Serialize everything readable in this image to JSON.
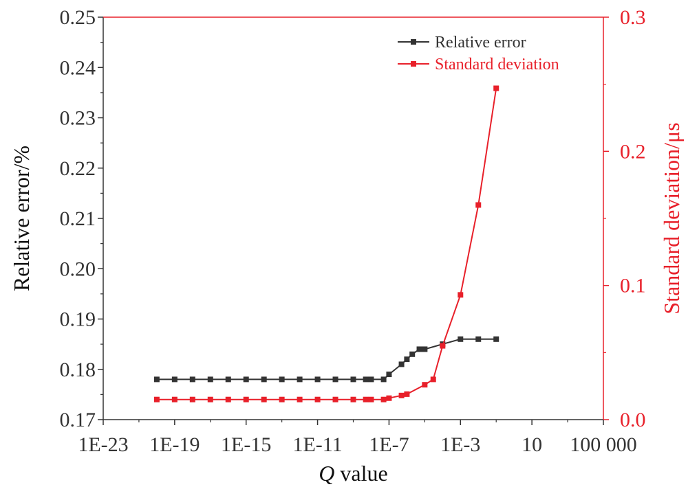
{
  "chart_data": {
    "type": "line",
    "xlabel_italic": "Q",
    "xlabel_rest": " value",
    "ylabel_left": "Relative error/%",
    "ylabel_right": "Standard deviation/μs",
    "x_scale": "log",
    "xlim": [
      1e-23,
      100000.0
    ],
    "x_tick_values": [
      1e-23,
      1e-19,
      1e-15,
      1e-11,
      1e-07,
      0.001,
      10,
      100000.0
    ],
    "x_tick_labels": [
      "1E-23",
      "1E-19",
      "1E-15",
      "1E-11",
      "1E-7",
      "1E-3",
      "10",
      "100 000"
    ],
    "ylim_left": [
      0.17,
      0.25
    ],
    "y_left_ticks": [
      "0.17",
      "0.18",
      "0.19",
      "0.20",
      "0.21",
      "0.22",
      "0.23",
      "0.24",
      "0.25"
    ],
    "ylim_right": [
      0.0,
      0.3
    ],
    "y_right_ticks": [
      "0.0",
      "0.1",
      "0.2",
      "0.3"
    ],
    "grid": false,
    "legend_position": "top-right",
    "series": [
      {
        "name": "Relative error",
        "axis": "left",
        "color": "#333333",
        "marker": "square",
        "x": [
          1e-20,
          1e-19,
          1e-18,
          1e-17,
          1e-16,
          1e-15,
          1e-14,
          1e-13,
          1e-12,
          1e-11,
          1e-10,
          1e-09,
          5e-09,
          1e-08,
          5e-08,
          1e-07,
          5e-07,
          1e-06,
          2e-06,
          5e-06,
          1e-05,
          0.0001,
          0.001,
          0.01,
          0.1
        ],
        "values": [
          0.178,
          0.178,
          0.178,
          0.178,
          0.178,
          0.178,
          0.178,
          0.178,
          0.178,
          0.178,
          0.178,
          0.178,
          0.178,
          0.178,
          0.178,
          0.179,
          0.181,
          0.182,
          0.183,
          0.184,
          0.184,
          0.185,
          0.186,
          0.186,
          0.186
        ]
      },
      {
        "name": "Standard deviation",
        "axis": "right",
        "color": "#e8202a",
        "marker": "square",
        "x": [
          1e-20,
          1e-19,
          1e-18,
          1e-17,
          1e-16,
          1e-15,
          1e-14,
          1e-13,
          1e-12,
          1e-11,
          1e-10,
          1e-09,
          5e-09,
          1e-08,
          5e-08,
          1e-07,
          5e-07,
          1e-06,
          1e-05,
          3e-05,
          0.0001,
          0.001,
          0.01,
          0.1
        ],
        "values": [
          0.015,
          0.015,
          0.015,
          0.015,
          0.015,
          0.015,
          0.015,
          0.015,
          0.015,
          0.015,
          0.015,
          0.015,
          0.015,
          0.015,
          0.015,
          0.016,
          0.018,
          0.019,
          0.026,
          0.03,
          0.055,
          0.093,
          0.16,
          0.247
        ]
      }
    ]
  }
}
